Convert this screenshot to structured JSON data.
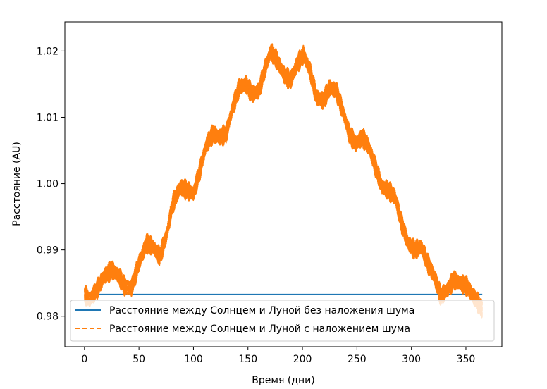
{
  "chart_data": {
    "type": "line",
    "xlabel": "Время (дни)",
    "ylabel": "Расстояние (AU)",
    "xlim": [
      -18,
      383
    ],
    "ylim": [
      0.9754,
      1.0244
    ],
    "xticks": [
      0,
      50,
      100,
      150,
      200,
      250,
      300,
      350
    ],
    "yticks": [
      0.98,
      0.99,
      1.0,
      1.01,
      1.02
    ],
    "ytick_labels": [
      "0.98",
      "0.99",
      "1.00",
      "1.01",
      "1.02"
    ],
    "grid": false,
    "legend_position": "lower-center",
    "series": [
      {
        "name": "Расстояние между Солнцем и Луной без наложения шума",
        "color": "#1f77b4",
        "style": "solid",
        "x": [
          0,
          365
        ],
        "y": [
          0.9833,
          0.9833
        ]
      },
      {
        "name": "Расстояние между Солнцем и Луной с наложением шума",
        "color": "#ff7f0e",
        "style": "dashed",
        "band_half_width": 0.0016,
        "x": [
          0,
          5,
          12,
          18,
          25,
          31,
          37,
          43,
          50,
          57,
          63,
          69,
          75,
          81,
          88,
          94,
          100,
          106,
          112,
          118,
          124,
          130,
          136,
          142,
          148,
          154,
          160,
          166,
          171,
          177,
          183,
          189,
          195,
          201,
          207,
          213,
          219,
          225,
          231,
          237,
          243,
          249,
          255,
          261,
          267,
          273,
          279,
          285,
          291,
          297,
          303,
          309,
          315,
          321,
          327,
          333,
          339,
          345,
          351,
          357,
          365
        ],
        "y": [
          0.9833,
          0.9825,
          0.9842,
          0.986,
          0.987,
          0.9862,
          0.9845,
          0.9842,
          0.988,
          0.991,
          0.9905,
          0.989,
          0.992,
          0.997,
          0.9995,
          0.999,
          0.9985,
          1.002,
          1.006,
          1.0075,
          1.007,
          1.0075,
          1.0115,
          1.0145,
          1.015,
          1.0135,
          1.014,
          1.0175,
          1.02,
          1.0185,
          1.0165,
          1.0155,
          1.018,
          1.0195,
          1.017,
          1.013,
          1.0125,
          1.0145,
          1.014,
          1.011,
          1.0075,
          1.006,
          1.007,
          1.0055,
          1.0025,
          0.9995,
          0.999,
          0.998,
          0.994,
          0.991,
          0.99,
          0.9905,
          0.988,
          0.986,
          0.983,
          0.984,
          0.9855,
          0.985,
          0.9845,
          0.983,
          0.981
        ]
      }
    ]
  }
}
